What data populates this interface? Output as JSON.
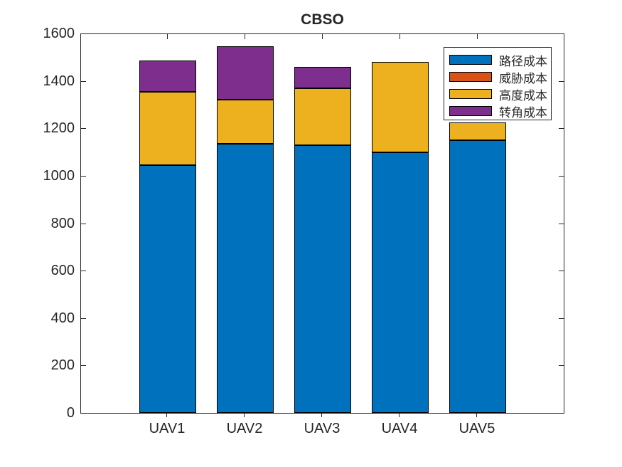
{
  "figure": {
    "background": "#ffffff"
  },
  "chart_data": {
    "type": "bar",
    "stacked": true,
    "title": "CBSO",
    "categories": [
      "UAV1",
      "UAV2",
      "UAV3",
      "UAV4",
      "UAV5"
    ],
    "series": [
      {
        "key": "path-cost",
        "name": "路径成本",
        "color": "#0072BD",
        "values": [
          1045,
          1135,
          1130,
          1100,
          1150
        ]
      },
      {
        "key": "threat-cost",
        "name": "威胁成本",
        "color": "#D95319",
        "values": [
          0,
          0,
          0,
          0,
          0
        ]
      },
      {
        "key": "height-cost",
        "name": "高度成本",
        "color": "#EDB120",
        "values": [
          310,
          185,
          240,
          380,
          75
        ]
      },
      {
        "key": "turn-cost",
        "name": "转角成本",
        "color": "#7E2F8E",
        "values": [
          130,
          225,
          90,
          0,
          0
        ]
      }
    ],
    "totals": [
      1485,
      1545,
      1460,
      1480,
      1225
    ],
    "xlabel": "",
    "ylabel": "",
    "ylim": [
      0,
      1600
    ],
    "yticks": [
      0,
      200,
      400,
      600,
      800,
      1000,
      1200,
      1400,
      1600
    ],
    "grid": false,
    "bar_edge_color": "#000000",
    "legend_position": "northeast",
    "axis_color": "#262626",
    "text_color": "#262626"
  }
}
